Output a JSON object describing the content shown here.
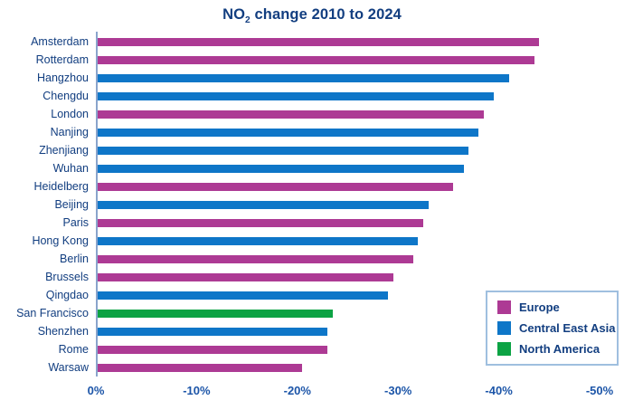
{
  "title": {
    "prefix": "NO",
    "subscript": "2",
    "suffix": " change 2010 to 2024"
  },
  "colors": {
    "europe": "#ad3a94",
    "central_east_asia": "#0e76c8",
    "north_america": "#0ca344",
    "text_navy": "#123e80",
    "axis_line": "#8aa4cc",
    "legend_border": "#9fbfdf"
  },
  "legend": {
    "items": [
      {
        "label": "Europe",
        "color": "#ad3a94"
      },
      {
        "label": "Central East Asia",
        "color": "#0e76c8"
      },
      {
        "label": "North America",
        "color": "#0ca344"
      }
    ]
  },
  "chart_data": {
    "type": "bar",
    "orientation": "horizontal",
    "title": "NO2 change 2010 to 2024",
    "xlabel": "",
    "ylabel": "",
    "xlim": [
      0,
      -50
    ],
    "x_ticks": [
      "0%",
      "-10%",
      "-20%",
      "-30%",
      "-40%",
      "-50%"
    ],
    "grid": false,
    "legend_position": "right-middle",
    "categories": [
      "Amsterdam",
      "Rotterdam",
      "Hangzhou",
      "Chengdu",
      "London",
      "Nanjing",
      "Zhenjiang",
      "Wuhan",
      "Heidelberg",
      "Beijing",
      "Paris",
      "Hong Kong",
      "Berlin",
      "Brussels",
      "Qingdao",
      "San Francisco",
      "Shenzhen",
      "Rome",
      "Warsaw"
    ],
    "values": [
      -44,
      -43.5,
      -41,
      -39.5,
      -38.5,
      -38,
      -37,
      -36.5,
      -35.5,
      -33,
      -32.5,
      -32,
      -31.5,
      -29.5,
      -29,
      -23.5,
      -23,
      -23,
      -20.5
    ],
    "regions": [
      "Europe",
      "Europe",
      "Central East Asia",
      "Central East Asia",
      "Europe",
      "Central East Asia",
      "Central East Asia",
      "Central East Asia",
      "Europe",
      "Central East Asia",
      "Europe",
      "Central East Asia",
      "Europe",
      "Europe",
      "Central East Asia",
      "North America",
      "Central East Asia",
      "Europe",
      "Europe"
    ],
    "region_colors": {
      "Europe": "#ad3a94",
      "Central East Asia": "#0e76c8",
      "North America": "#0ca344"
    }
  }
}
